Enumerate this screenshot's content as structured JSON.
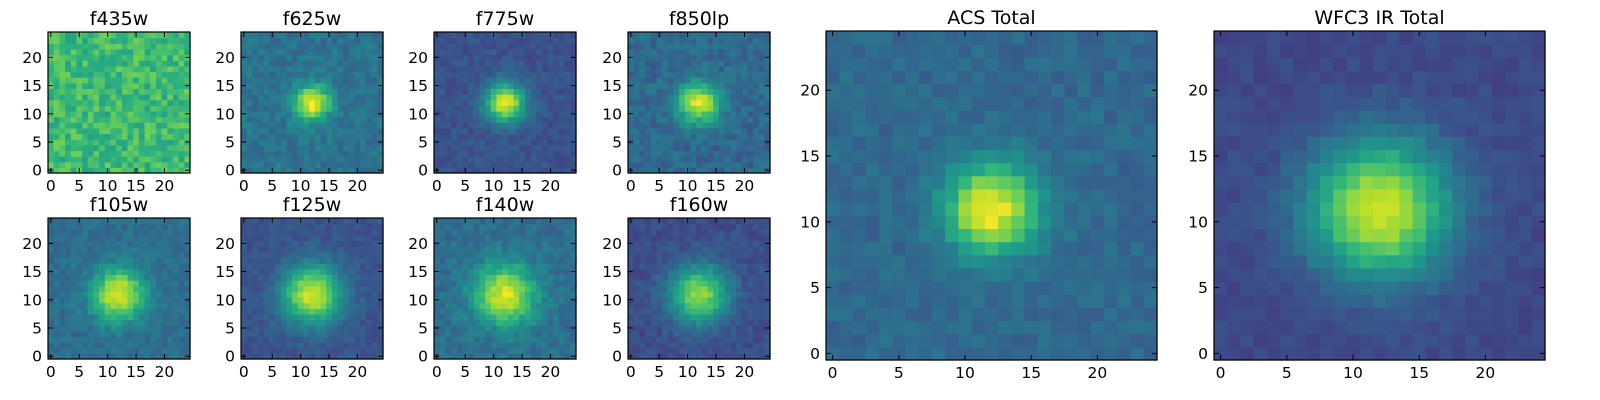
{
  "figure": {
    "colormap": "viridis",
    "colormap_stops": [
      "#440154",
      "#482878",
      "#3e4989",
      "#31688e",
      "#26828e",
      "#1f9e89",
      "#35b779",
      "#6ece58",
      "#b5de2b",
      "#fde725"
    ]
  },
  "chart_data": [
    {
      "type": "heatmap",
      "title": "f435w",
      "grid": [
        25,
        25
      ],
      "xlim": [
        0,
        24
      ],
      "ylim": [
        0,
        24
      ],
      "xticks": [
        "0",
        "5",
        "10",
        "15",
        "20"
      ],
      "yticks": [
        "0",
        "5",
        "10",
        "15",
        "20"
      ],
      "source_peak": [
        12,
        12
      ],
      "source_strength": 0.0,
      "source_width": 3.0,
      "background": 0.68,
      "noise": 0.22
    },
    {
      "type": "heatmap",
      "title": "f625w",
      "grid": [
        25,
        25
      ],
      "xlim": [
        0,
        24
      ],
      "ylim": [
        0,
        24
      ],
      "xticks": [
        "0",
        "5",
        "10",
        "15",
        "20"
      ],
      "yticks": [
        "0",
        "5",
        "10",
        "15",
        "20"
      ],
      "source_peak": [
        12,
        12
      ],
      "source_strength": 0.62,
      "source_width": 2.2,
      "background": 0.38,
      "noise": 0.14
    },
    {
      "type": "heatmap",
      "title": "f775w",
      "grid": [
        25,
        25
      ],
      "xlim": [
        0,
        24
      ],
      "ylim": [
        0,
        24
      ],
      "xticks": [
        "0",
        "5",
        "10",
        "15",
        "20"
      ],
      "yticks": [
        "0",
        "5",
        "10",
        "15",
        "20"
      ],
      "source_peak": [
        12,
        12
      ],
      "source_strength": 0.72,
      "source_width": 2.4,
      "background": 0.26,
      "noise": 0.1
    },
    {
      "type": "heatmap",
      "title": "f850lp",
      "grid": [
        25,
        25
      ],
      "xlim": [
        0,
        24
      ],
      "ylim": [
        0,
        24
      ],
      "xticks": [
        "0",
        "5",
        "10",
        "15",
        "20"
      ],
      "yticks": [
        "0",
        "5",
        "10",
        "15",
        "20"
      ],
      "source_peak": [
        12,
        12
      ],
      "source_strength": 0.6,
      "source_width": 2.6,
      "background": 0.34,
      "noise": 0.14
    },
    {
      "type": "heatmap",
      "title": "f105w",
      "grid": [
        25,
        25
      ],
      "xlim": [
        0,
        24
      ],
      "ylim": [
        0,
        24
      ],
      "xticks": [
        "0",
        "5",
        "10",
        "15",
        "20"
      ],
      "yticks": [
        "0",
        "5",
        "10",
        "15",
        "20"
      ],
      "source_peak": [
        12,
        11
      ],
      "source_strength": 0.6,
      "source_width": 3.2,
      "background": 0.36,
      "noise": 0.12
    },
    {
      "type": "heatmap",
      "title": "f125w",
      "grid": [
        25,
        25
      ],
      "xlim": [
        0,
        24
      ],
      "ylim": [
        0,
        24
      ],
      "xticks": [
        "0",
        "5",
        "10",
        "15",
        "20"
      ],
      "yticks": [
        "0",
        "5",
        "10",
        "15",
        "20"
      ],
      "source_peak": [
        12,
        11
      ],
      "source_strength": 0.68,
      "source_width": 3.6,
      "background": 0.26,
      "noise": 0.09
    },
    {
      "type": "heatmap",
      "title": "f140w",
      "grid": [
        25,
        25
      ],
      "xlim": [
        0,
        24
      ],
      "ylim": [
        0,
        24
      ],
      "xticks": [
        "0",
        "5",
        "10",
        "15",
        "20"
      ],
      "yticks": [
        "0",
        "5",
        "10",
        "15",
        "20"
      ],
      "source_peak": [
        12,
        11
      ],
      "source_strength": 0.58,
      "source_width": 3.8,
      "background": 0.36,
      "noise": 0.13
    },
    {
      "type": "heatmap",
      "title": "f160w",
      "grid": [
        25,
        25
      ],
      "xlim": [
        0,
        24
      ],
      "ylim": [
        0,
        24
      ],
      "xticks": [
        "0",
        "5",
        "10",
        "15",
        "20"
      ],
      "yticks": [
        "0",
        "5",
        "10",
        "15",
        "20"
      ],
      "source_peak": [
        12,
        11
      ],
      "source_strength": 0.6,
      "source_width": 3.6,
      "background": 0.24,
      "noise": 0.1
    },
    {
      "type": "heatmap",
      "title": "ACS Total",
      "grid": [
        25,
        25
      ],
      "xlim": [
        0,
        24
      ],
      "ylim": [
        0,
        24
      ],
      "xticks": [
        "0",
        "5",
        "10",
        "15",
        "20"
      ],
      "yticks": [
        "0",
        "5",
        "10",
        "15",
        "20"
      ],
      "source_peak": [
        12,
        11
      ],
      "source_strength": 0.66,
      "source_width": 2.4,
      "background": 0.34,
      "noise": 0.1
    },
    {
      "type": "heatmap",
      "title": "WFC3 IR Total",
      "grid": [
        25,
        25
      ],
      "xlim": [
        0,
        24
      ],
      "ylim": [
        0,
        24
      ],
      "xticks": [
        "0",
        "5",
        "10",
        "15",
        "20"
      ],
      "yticks": [
        "0",
        "5",
        "10",
        "15",
        "20"
      ],
      "source_peak": [
        12,
        11
      ],
      "source_strength": 0.72,
      "source_width": 3.7,
      "background": 0.22,
      "noise": 0.07
    }
  ]
}
